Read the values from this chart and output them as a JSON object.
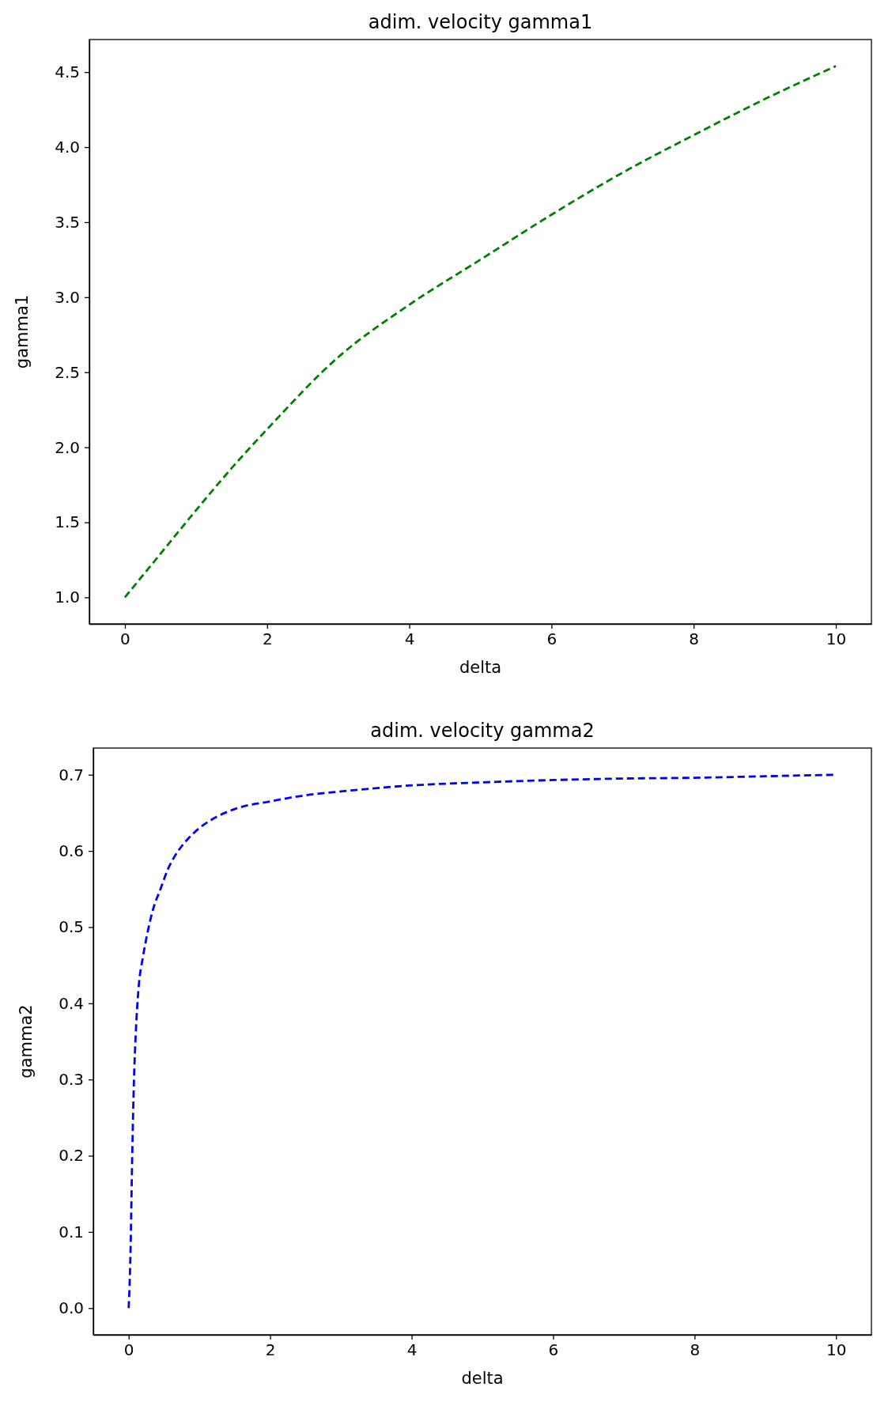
{
  "chart_data": [
    {
      "type": "line",
      "title": "adim. velocity gamma1",
      "xlabel": "delta",
      "ylabel": "gamma1",
      "line_style": "dashed",
      "x": [
        0,
        0.5,
        1,
        1.5,
        2,
        3,
        4,
        5,
        6,
        7,
        8,
        9,
        10
      ],
      "series": [
        {
          "color": "#008000",
          "values": [
            1.0,
            1.29,
            1.58,
            1.86,
            2.12,
            2.6,
            2.95,
            3.25,
            3.55,
            3.83,
            4.08,
            4.32,
            4.54
          ]
        }
      ],
      "xlim": [
        -0.5,
        10.5
      ],
      "ylim": [
        0.823,
        4.717
      ],
      "xticks": [
        0,
        2,
        4,
        6,
        8,
        10
      ],
      "yticks": [
        {
          "value": 1,
          "label": "1.0"
        },
        1.5,
        {
          "value": 2,
          "label": "2.0"
        },
        2.5,
        {
          "value": 3,
          "label": "3.0"
        },
        3.5,
        {
          "value": 4,
          "label": "4.0"
        },
        4.5
      ]
    },
    {
      "type": "line",
      "title": "adim. velocity gamma2",
      "xlabel": "delta",
      "ylabel": "gamma2",
      "line_style": "dashed",
      "x": [
        0,
        0.025,
        0.05,
        0.075,
        0.1,
        0.14,
        0.2,
        0.26,
        0.35,
        0.45,
        0.55,
        0.7,
        0.85,
        1,
        1.25,
        1.5,
        2,
        2.5,
        3,
        4,
        5,
        6,
        7,
        8,
        9,
        10
      ],
      "series": [
        {
          "color": "#0000ff",
          "values": [
            0,
            0.07,
            0.2,
            0.3,
            0.36,
            0.42,
            0.46,
            0.49,
            0.525,
            0.55,
            0.575,
            0.6,
            0.617,
            0.63,
            0.645,
            0.655,
            0.665,
            0.673,
            0.678,
            0.686,
            0.69,
            0.693,
            0.695,
            0.696,
            0.698,
            0.7
          ]
        }
      ],
      "xlim": [
        -0.5,
        10.5
      ],
      "ylim": [
        -0.035,
        0.735
      ],
      "xticks": [
        0,
        2,
        4,
        6,
        8,
        10
      ],
      "yticks": [
        {
          "value": 0,
          "label": "0.0"
        },
        0.1,
        0.2,
        0.3,
        0.4,
        0.5,
        0.6,
        0.7
      ]
    }
  ]
}
